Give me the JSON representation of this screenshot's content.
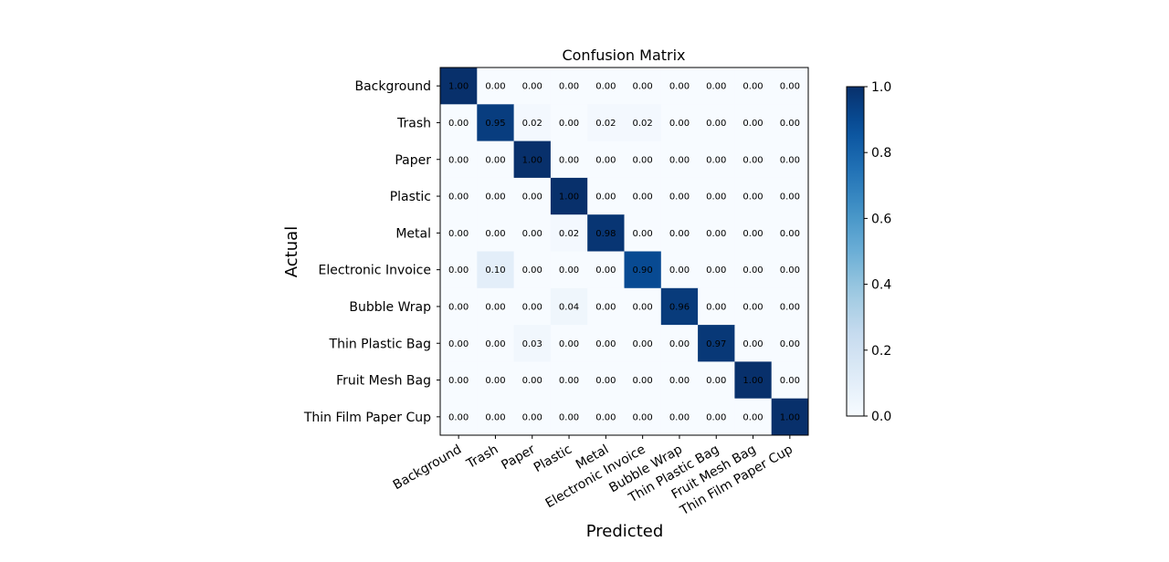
{
  "chart_data": {
    "type": "heatmap",
    "title": "Confusion Matrix",
    "xlabel": "Predicted",
    "ylabel": "Actual",
    "x_categories": [
      "Background",
      "Trash",
      "Paper",
      "Plastic",
      "Metal",
      "Electronic Invoice",
      "Bubble Wrap",
      "Thin Plastic Bag",
      "Fruit Mesh Bag",
      "Thin Film Paper Cup"
    ],
    "y_categories": [
      "Background",
      "Trash",
      "Paper",
      "Plastic",
      "Metal",
      "Electronic Invoice",
      "Bubble Wrap",
      "Thin Plastic Bag",
      "Fruit Mesh Bag",
      "Thin Film Paper Cup"
    ],
    "values": [
      [
        1.0,
        0.0,
        0.0,
        0.0,
        0.0,
        0.0,
        0.0,
        0.0,
        0.0,
        0.0
      ],
      [
        0.0,
        0.95,
        0.02,
        0.0,
        0.02,
        0.02,
        0.0,
        0.0,
        0.0,
        0.0
      ],
      [
        0.0,
        0.0,
        1.0,
        0.0,
        0.0,
        0.0,
        0.0,
        0.0,
        0.0,
        0.0
      ],
      [
        0.0,
        0.0,
        0.0,
        1.0,
        0.0,
        0.0,
        0.0,
        0.0,
        0.0,
        0.0
      ],
      [
        0.0,
        0.0,
        0.0,
        0.02,
        0.98,
        0.0,
        0.0,
        0.0,
        0.0,
        0.0
      ],
      [
        0.0,
        0.1,
        0.0,
        0.0,
        0.0,
        0.9,
        0.0,
        0.0,
        0.0,
        0.0
      ],
      [
        0.0,
        0.0,
        0.0,
        0.04,
        0.0,
        0.0,
        0.96,
        0.0,
        0.0,
        0.0
      ],
      [
        0.0,
        0.0,
        0.03,
        0.0,
        0.0,
        0.0,
        0.0,
        0.97,
        0.0,
        0.0
      ],
      [
        0.0,
        0.0,
        0.0,
        0.0,
        0.0,
        0.0,
        0.0,
        0.0,
        1.0,
        0.0
      ],
      [
        0.0,
        0.0,
        0.0,
        0.0,
        0.0,
        0.0,
        0.0,
        0.0,
        0.0,
        1.0
      ]
    ],
    "value_format": "0.00",
    "colormap": "Blues",
    "colorbar": {
      "range": [
        0.0,
        1.0
      ],
      "ticks": [
        "0.0",
        "0.2",
        "0.4",
        "0.6",
        "0.8",
        "1.0"
      ]
    }
  }
}
